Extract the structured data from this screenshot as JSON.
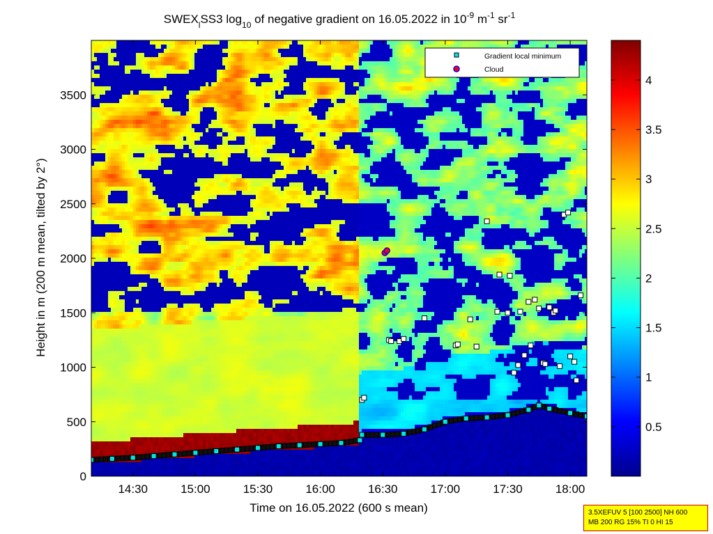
{
  "chart_data": {
    "type": "heatmap",
    "title": {
      "prefix": "SWEX",
      "sub1": "l",
      "mid": "SS3 log",
      "sub2": "10",
      "rest": " of negative gradient on 16.05.2022 in 10",
      "sup1": "-9",
      "m": " m",
      "sup2": "-1",
      "sr": " sr",
      "sup3": "-1"
    },
    "xlabel": "Time on 16.05.2022 (600 s mean)",
    "ylabel": "Height in m (200 m mean, tilted by 2°)",
    "xlim": [
      "14:10",
      "18:08"
    ],
    "ylim": [
      0,
      4000
    ],
    "x_ticks": [
      "14:30",
      "15:00",
      "15:30",
      "16:00",
      "16:30",
      "17:00",
      "17:30",
      "18:00"
    ],
    "y_ticks": [
      0,
      500,
      1000,
      1500,
      2000,
      2500,
      3000,
      3500
    ],
    "colorbar": {
      "range": [
        0,
        4.4
      ],
      "ticks": [
        "0.5",
        "1",
        "1.5",
        "2",
        "2.5",
        "3",
        "3.5",
        "4"
      ],
      "colormap": "jet"
    },
    "legend": {
      "placement": "top-right",
      "entries": [
        {
          "label": "Gradient local minimum",
          "marker": "square",
          "color": "#00e5e5"
        },
        {
          "label": "Cloud",
          "marker": "circle",
          "color": "#ff0000",
          "edge": "#0000ff"
        }
      ]
    },
    "series": [
      {
        "name": "Gradient local minimum",
        "x": [
          "14:10",
          "14:20",
          "14:30",
          "14:40",
          "14:50",
          "15:00",
          "15:10",
          "15:20",
          "15:30",
          "15:40",
          "15:50",
          "16:00",
          "16:10",
          "16:19",
          "16:20",
          "16:30",
          "16:40",
          "16:50",
          "17:00",
          "17:10",
          "17:20",
          "17:30",
          "17:40",
          "17:45",
          "17:50",
          "18:00",
          "18:08"
        ],
        "y": [
          150,
          160,
          170,
          185,
          200,
          215,
          230,
          245,
          260,
          275,
          285,
          295,
          305,
          330,
          380,
          380,
          390,
          430,
          500,
          530,
          540,
          560,
          610,
          650,
          620,
          580,
          550
        ]
      },
      {
        "name": "Gradient local minimum (upper)",
        "x": [
          "16:20",
          "16:21",
          "16:33",
          "16:34",
          "16:38",
          "16:40",
          "16:50",
          "17:05",
          "17:06",
          "17:12",
          "17:15",
          "17:20",
          "17:25",
          "17:26",
          "17:30",
          "17:31",
          "17:33",
          "17:35",
          "17:36",
          "17:38",
          "17:40",
          "17:41",
          "17:43",
          "17:45",
          "17:47",
          "17:48",
          "17:50",
          "17:52",
          "17:53",
          "17:55",
          "17:57",
          "17:59",
          "18:00",
          "18:02",
          "18:03",
          "18:05"
        ],
        "y": [
          700,
          720,
          1250,
          1240,
          1240,
          1260,
          1450,
          1200,
          1210,
          1440,
          1190,
          2340,
          1510,
          1850,
          1500,
          1840,
          950,
          1020,
          1510,
          1110,
          1600,
          1200,
          1620,
          1540,
          1040,
          1030,
          1550,
          1500,
          1520,
          1010,
          2400,
          2420,
          1100,
          1050,
          880,
          1660
        ]
      },
      {
        "name": "Cloud",
        "x": [
          "16:31",
          "16:32"
        ],
        "y": [
          2050,
          2070
        ]
      }
    ],
    "annotations": [
      "3.5XEFUV 5 [100 2500] NH 600",
      "MB 200 RG 15% TI 0 HI 15"
    ]
  },
  "colors": {
    "cmap_low": "#00008f",
    "cmap_high": "#800000",
    "infobox_bg": "#ffff00",
    "infobox_border": "#d00000"
  }
}
